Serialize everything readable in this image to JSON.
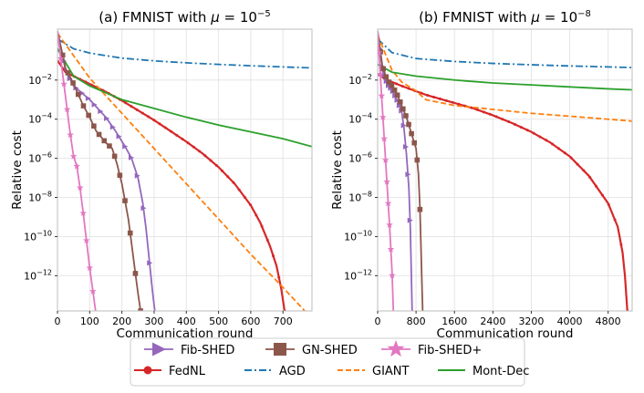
{
  "chart_data": [
    {
      "type": "line",
      "title_prefix": "(a) FMNIST with ",
      "title_mu": "μ",
      "title_eq": " = 10",
      "title_exp": "−5",
      "xlabel": "Communication round",
      "ylabel": "Relative cost",
      "xlim": [
        0,
        790
      ],
      "ylim_log10": [
        -13.8,
        0.6
      ],
      "xticks": [
        0,
        100,
        200,
        300,
        400,
        500,
        600,
        700
      ],
      "yticks_exp": [
        -2,
        -4,
        -6,
        -8,
        -10,
        -12
      ],
      "series": [
        {
          "name": "FedNL",
          "color": "#d62728",
          "marker": "dot",
          "x": [
            0,
            25,
            50,
            100,
            150,
            200,
            250,
            300,
            350,
            400,
            450,
            500,
            550,
            600,
            630,
            660,
            680,
            695,
            705
          ],
          "y": [
            -1.0,
            -1.6,
            -1.8,
            -2.2,
            -2.6,
            -3.05,
            -3.55,
            -4.05,
            -4.6,
            -5.15,
            -5.75,
            -6.45,
            -7.3,
            -8.4,
            -9.3,
            -10.5,
            -11.5,
            -12.7,
            -13.8
          ]
        },
        {
          "name": "AGD",
          "color": "#1f77b4",
          "marker": "none",
          "x": [
            0,
            50,
            100,
            200,
            300,
            400,
            500,
            600,
            700,
            790
          ],
          "y": [
            0.1,
            -0.4,
            -0.62,
            -0.88,
            -1.02,
            -1.12,
            -1.2,
            -1.27,
            -1.33,
            -1.38
          ]
        },
        {
          "name": "GIANT",
          "color": "#ff7f0e",
          "marker": "none",
          "x": [
            0,
            100,
            200,
            300,
            400,
            500,
            600,
            700,
            790
          ],
          "y": [
            0.4,
            -1.9,
            -3.7,
            -5.5,
            -7.3,
            -9.1,
            -10.9,
            -12.6,
            -14.2
          ]
        },
        {
          "name": "Mont-Dec",
          "color": "#2ca02c",
          "marker": "none",
          "x": [
            0,
            50,
            100,
            200,
            300,
            400,
            500,
            600,
            700,
            790
          ],
          "y": [
            -0.4,
            -1.8,
            -2.3,
            -3.0,
            -3.45,
            -3.9,
            -4.3,
            -4.65,
            -5.0,
            -5.4
          ]
        },
        {
          "name": "Fib-SHED",
          "color": "#9467bd",
          "marker": "tri",
          "x": [
            0,
            25,
            50,
            100,
            150,
            180,
            210,
            230,
            250,
            265,
            275,
            285,
            295,
            305
          ],
          "y": [
            0.5,
            -1.5,
            -2.3,
            -3.0,
            -3.9,
            -4.6,
            -5.4,
            -6.0,
            -7.0,
            -8.3,
            -9.6,
            -11.2,
            -12.8,
            -14.2
          ]
        },
        {
          "name": "GN-SHED",
          "color": "#8c564b",
          "marker": "square",
          "x": [
            0,
            25,
            50,
            80,
            100,
            120,
            150,
            170,
            185,
            200,
            210,
            220,
            228,
            235,
            242,
            250,
            258
          ],
          "y": [
            0.5,
            -1.4,
            -2.2,
            -3.3,
            -3.9,
            -4.6,
            -5.2,
            -5.5,
            -6.3,
            -7.3,
            -8.2,
            -9.1,
            -10.1,
            -11.0,
            -11.9,
            -12.9,
            -13.8
          ]
        },
        {
          "name": "Fib-SHED+",
          "color": "#e377c2",
          "marker": "star",
          "x": [
            0,
            10,
            20,
            30,
            40,
            50,
            60,
            70,
            80,
            90,
            100,
            110,
            120
          ],
          "y": [
            0.5,
            -0.9,
            -2.2,
            -3.5,
            -4.8,
            -5.9,
            -6.4,
            -7.5,
            -8.8,
            -10.2,
            -11.6,
            -12.8,
            -14.0
          ]
        }
      ]
    },
    {
      "type": "line",
      "title_prefix": "(b) FMNIST with ",
      "title_mu": "μ",
      "title_eq": " = 10",
      "title_exp": "−8",
      "xlabel": "Communication round",
      "ylabel": "Relative cost",
      "xlim": [
        0,
        5300
      ],
      "ylim_log10": [
        -13.8,
        0.6
      ],
      "xticks": [
        0,
        800,
        1600,
        2400,
        3200,
        4000,
        4800
      ],
      "yticks_exp": [
        -2,
        -4,
        -6,
        -8,
        -10,
        -12
      ],
      "series": [
        {
          "name": "FedNL",
          "color": "#d62728",
          "marker": "dot",
          "x": [
            0,
            200,
            500,
            1000,
            1500,
            2000,
            2400,
            2800,
            3200,
            3600,
            4000,
            4400,
            4800,
            5000,
            5100,
            5150,
            5200
          ],
          "y": [
            -1.7,
            -2.0,
            -2.3,
            -2.75,
            -3.1,
            -3.45,
            -3.8,
            -4.2,
            -4.65,
            -5.2,
            -5.9,
            -6.9,
            -8.3,
            -9.5,
            -10.8,
            -12.0,
            -13.8
          ]
        },
        {
          "name": "AGD",
          "color": "#1f77b4",
          "marker": "none",
          "x": [
            0,
            300,
            800,
            1600,
            2400,
            3200,
            4000,
            4800,
            5300
          ],
          "y": [
            0.1,
            -0.6,
            -0.9,
            -1.05,
            -1.15,
            -1.22,
            -1.28,
            -1.33,
            -1.36
          ]
        },
        {
          "name": "GIANT",
          "color": "#ff7f0e",
          "marker": "none",
          "x": [
            0,
            300,
            500,
            800,
            1000,
            1200,
            1600,
            2400,
            3200,
            4000,
            4800,
            5300
          ],
          "y": [
            0.3,
            -1.5,
            -2.1,
            -2.55,
            -3.0,
            -3.1,
            -3.3,
            -3.5,
            -3.7,
            -3.85,
            -4.0,
            -4.1
          ]
        },
        {
          "name": "Mont-Dec",
          "color": "#2ca02c",
          "marker": "none",
          "x": [
            0,
            300,
            800,
            1600,
            2400,
            3200,
            4000,
            4800,
            5300
          ],
          "y": [
            -1.2,
            -1.6,
            -1.8,
            -2.0,
            -2.15,
            -2.25,
            -2.35,
            -2.45,
            -2.5
          ]
        },
        {
          "name": "Fib-SHED",
          "color": "#9467bd",
          "marker": "tri",
          "x": [
            0,
            100,
            200,
            300,
            400,
            500,
            550,
            600,
            650,
            680,
            700,
            720
          ],
          "y": [
            0.5,
            -1.5,
            -2.2,
            -2.5,
            -3.0,
            -3.6,
            -4.5,
            -5.8,
            -7.5,
            -9.5,
            -11.7,
            -14.0
          ]
        },
        {
          "name": "GN-SHED",
          "color": "#8c564b",
          "marker": "square",
          "x": [
            0,
            100,
            200,
            300,
            400,
            500,
            600,
            700,
            800,
            850,
            880,
            900,
            920,
            940
          ],
          "y": [
            0.5,
            -1.3,
            -2.0,
            -2.3,
            -2.7,
            -3.3,
            -3.9,
            -4.7,
            -5.5,
            -6.8,
            -8.5,
            -10.3,
            -12.2,
            -14.0
          ]
        },
        {
          "name": "Fib-SHED+",
          "color": "#e377c2",
          "marker": "star",
          "x": [
            0,
            50,
            100,
            150,
            200,
            250,
            300,
            330
          ],
          "y": [
            0.5,
            -1.5,
            -3.5,
            -5.5,
            -7.5,
            -9.5,
            -11.8,
            -14.0
          ]
        }
      ]
    }
  ],
  "legend": {
    "row1": [
      {
        "name": "Fib-SHED",
        "color": "#9467bd",
        "marker": "tri"
      },
      {
        "name": "GN-SHED",
        "color": "#8c564b",
        "marker": "square"
      },
      {
        "name": "Fib-SHED+",
        "color": "#e377c2",
        "marker": "star"
      }
    ],
    "row2": [
      {
        "name": "FedNL",
        "color": "#d62728",
        "marker": "dot",
        "dash": "solid"
      },
      {
        "name": "AGD",
        "color": "#1f77b4",
        "marker": "none",
        "dash": "dashdot"
      },
      {
        "name": "GIANT",
        "color": "#ff7f0e",
        "marker": "none",
        "dash": "dashed"
      },
      {
        "name": "Mont-Dec",
        "color": "#2ca02c",
        "marker": "none",
        "dash": "solid"
      }
    ]
  }
}
